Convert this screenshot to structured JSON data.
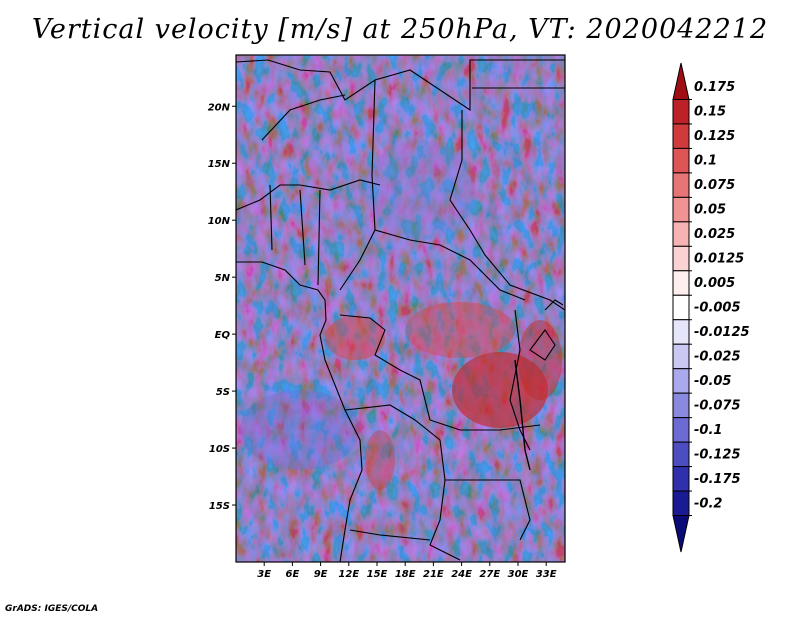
{
  "title": "Vertical velocity [m/s] at 250hPa, VT: 2020042212",
  "credit": "GrADS: IGES/COLA",
  "map": {
    "lon_labels": [
      "3E",
      "6E",
      "9E",
      "12E",
      "15E",
      "18E",
      "21E",
      "24E",
      "27E",
      "30E",
      "33E"
    ],
    "lat_labels": [
      "20N",
      "15N",
      "10N",
      "5N",
      "EQ",
      "5S",
      "10S",
      "15S"
    ],
    "lon_range": [
      0,
      35
    ],
    "lat_range": [
      -20,
      24.5
    ]
  },
  "colorbar": {
    "levels": [
      "0.175",
      "0.15",
      "0.125",
      "0.1",
      "0.075",
      "0.05",
      "0.025",
      "0.0125",
      "0.005",
      "-0.005",
      "-0.0125",
      "-0.025",
      "-0.05",
      "-0.075",
      "-0.1",
      "-0.125",
      "-0.175",
      "-0.2"
    ],
    "colors": [
      "#a00e14",
      "#bb2126",
      "#cf3b3b",
      "#dd5555",
      "#e87575",
      "#f09393",
      "#f6b3b3",
      "#fbd2d2",
      "#feeeee",
      "#ffffff",
      "#e6e6fb",
      "#c9c9f3",
      "#a9a9eb",
      "#8989e0",
      "#6b6bd3",
      "#4d4dc2",
      "#3030ad",
      "#1a1a94",
      "#0b0b78"
    ]
  }
}
